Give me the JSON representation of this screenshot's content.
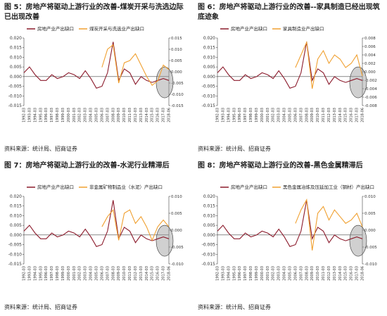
{
  "chart_data": [
    {
      "type": "line",
      "title": "图 5：房地产将驱动上游行业的改善-煤炭开采与洗选边际已出现改善",
      "source": "资料来源：统计局、招商证券",
      "categories": [
        "1992-03",
        "1993-03",
        "1994-03",
        "1995-03",
        "1996-03",
        "1997-03",
        "1998-03",
        "1999-03",
        "2000-03",
        "2001-03",
        "2002-03",
        "2003-03",
        "2004-03",
        "2005-03",
        "2006-03",
        "2007-03",
        "2008-03",
        "2009-03",
        "2010-03",
        "2011-03",
        "2012-03",
        "2013-03",
        "2014-03",
        "2015-03",
        "2016-03",
        "2017-03",
        "2018-06"
      ],
      "ylim": [
        -0.015,
        0.02
      ],
      "yticks": [
        -0.015,
        {
          "value": -0.01,
          "label": "-0.010"
        },
        -0.005,
        {
          "value": 0,
          "label": "0.000"
        },
        0.005,
        {
          "value": 0.01,
          "label": "0.010"
        },
        0.015,
        {
          "value": 0.02,
          "label": "0.020"
        }
      ],
      "y2lim": [
        -0.015,
        0.015
      ],
      "y2ticks": [
        -0.015,
        {
          "value": -0.01,
          "label": "-0.010"
        },
        -0.005,
        {
          "value": 0,
          "label": "0.000"
        },
        0.005,
        {
          "value": 0.01,
          "label": "0.010"
        },
        0.015
      ],
      "series": [
        {
          "name": "房地产业产出缺口",
          "color": "#8b1a2b",
          "values": [
            0.002,
            0.005,
            0.001,
            -0.002,
            -0.002,
            0.001,
            -0.001,
            0,
            0.002,
            0.001,
            -0.001,
            0.003,
            -0.001,
            -0.006,
            -0.005,
            0.002,
            0.018,
            -0.002,
            0.004,
            0.002,
            -0.004,
            0,
            -0.002,
            -0.003,
            -0.002,
            -0.001,
            -0.002
          ]
        },
        {
          "name": "煤炭开采与洗选业产出缺口",
          "color": "#f0a030",
          "axis": "y2",
          "values": [
            null,
            null,
            null,
            null,
            null,
            null,
            null,
            null,
            null,
            null,
            null,
            null,
            null,
            null,
            0.002,
            0.01,
            0.012,
            -0.005,
            0.004,
            0.005,
            0.008,
            0.003,
            -0.002,
            -0.006,
            -0.004,
            0.003,
            0.001
          ]
        }
      ]
    },
    {
      "type": "line",
      "title": "图 6：房地产将驱动上游行业的改善--家具制造已经出现筑底迹象",
      "source": "资料来源：统计局、招商证券",
      "categories": [
        "1992-03",
        "1993-03",
        "1994-03",
        "1995-03",
        "1996-03",
        "1997-03",
        "1998-03",
        "1999-03",
        "2000-03",
        "2001-03",
        "2002-03",
        "2003-03",
        "2004-03",
        "2005-03",
        "2006-03",
        "2007-03",
        "2008-03",
        "2009-03",
        "2010-03",
        "2011-03",
        "2012-03",
        "2013-03",
        "2014-03",
        "2015-03",
        "2016-03",
        "2017-03",
        "2018-06"
      ],
      "ylim": [
        -0.015,
        0.02
      ],
      "yticks": [
        -0.015,
        {
          "value": -0.01,
          "label": "-0.010"
        },
        -0.005,
        {
          "value": 0,
          "label": "0.000"
        },
        0.005,
        {
          "value": 0.01,
          "label": "0.010"
        },
        0.015,
        {
          "value": 0.02,
          "label": "0.020"
        }
      ],
      "y2lim": [
        -0.008,
        0.008
      ],
      "y2ticks": [
        -0.008,
        -0.006,
        -0.004,
        -0.002,
        {
          "value": 0,
          "label": "0.000"
        },
        0.002,
        0.004,
        0.006,
        0.008
      ],
      "series": [
        {
          "name": "房地产业产出缺口",
          "color": "#8b1a2b",
          "values": [
            0.002,
            0.005,
            0.001,
            -0.002,
            -0.002,
            0.001,
            -0.001,
            0,
            0.002,
            0.001,
            -0.001,
            0.003,
            -0.001,
            -0.006,
            -0.005,
            0.002,
            0.018,
            -0.002,
            0.004,
            0.002,
            -0.004,
            0,
            -0.002,
            -0.003,
            -0.002,
            -0.001,
            -0.002
          ]
        },
        {
          "name": "家具制造业产出缺口",
          "color": "#f0a030",
          "axis": "y2",
          "values": [
            null,
            null,
            null,
            null,
            null,
            null,
            null,
            null,
            null,
            null,
            null,
            null,
            null,
            null,
            0.001,
            0.004,
            0.007,
            -0.004,
            0.003,
            0.005,
            0.002,
            0.004,
            0.003,
            0.001,
            0.002,
            0.004,
            -0.001
          ]
        }
      ]
    },
    {
      "type": "line",
      "title": "图 7：房地产将驱动上游行业的改善-水泥行业精滞后",
      "source": "资料来源：统计局、招商证券",
      "categories": [
        "1992-03",
        "1993-03",
        "1994-03",
        "1995-03",
        "1996-03",
        "1997-03",
        "1998-03",
        "1999-03",
        "2000-03",
        "2001-03",
        "2002-03",
        "2003-03",
        "2004-03",
        "2005-03",
        "2006-03",
        "2007-03",
        "2008-03",
        "2009-03",
        "2010-03",
        "2011-03",
        "2012-03",
        "2013-03",
        "2014-03",
        "2015-03",
        "2016-03",
        "2017-03",
        "2018-06"
      ],
      "ylim": [
        -0.015,
        0.02
      ],
      "yticks": [
        -0.015,
        {
          "value": -0.01,
          "label": "-0.010"
        },
        -0.005,
        {
          "value": 0,
          "label": "0.000"
        },
        0.005,
        {
          "value": 0.01,
          "label": "0.010"
        },
        0.015,
        {
          "value": 0.02,
          "label": "0.020"
        }
      ],
      "y2lim": [
        -0.01,
        0.01
      ],
      "y2ticks": [
        {
          "value": -0.01,
          "label": "-0.010"
        },
        -0.005,
        {
          "value": 0,
          "label": "0.000"
        },
        0.005,
        {
          "value": 0.01,
          "label": "0.010"
        }
      ],
      "series": [
        {
          "name": "房地产业产出缺口",
          "color": "#8b1a2b",
          "values": [
            0.002,
            0.005,
            0.001,
            -0.002,
            -0.002,
            0.001,
            -0.001,
            0,
            0.002,
            0.001,
            -0.001,
            0.003,
            -0.001,
            -0.006,
            -0.005,
            0.002,
            0.018,
            -0.002,
            0.004,
            0.002,
            -0.004,
            0,
            -0.002,
            -0.003,
            -0.002,
            -0.001,
            -0.002
          ]
        },
        {
          "name": "非金属矿物制品业（水泥）产出缺口",
          "color": "#f0a030",
          "axis": "y2",
          "values": [
            null,
            null,
            null,
            null,
            null,
            null,
            null,
            null,
            null,
            null,
            null,
            null,
            null,
            null,
            0.001,
            0.004,
            0.006,
            -0.003,
            0.005,
            0.006,
            0.002,
            0.004,
            0.001,
            -0.003,
            0.001,
            0.003,
            0.001
          ]
        }
      ]
    },
    {
      "type": "line",
      "title": "图 8：房地产将驱动上游行业的改善-黑色金属精滞后",
      "source": "资料来源：统计局、招商证券",
      "categories": [
        "1992-03",
        "1993-03",
        "1994-03",
        "1995-03",
        "1996-03",
        "1997-03",
        "1998-03",
        "1999-03",
        "2000-03",
        "2001-03",
        "2002-03",
        "2003-03",
        "2004-03",
        "2005-03",
        "2006-03",
        "2007-03",
        "2008-03",
        "2009-03",
        "2010-03",
        "2011-03",
        "2012-03",
        "2013-03",
        "2014-03",
        "2015-03",
        "2016-03",
        "2017-03",
        "2018-06"
      ],
      "ylim": [
        -0.015,
        0.02
      ],
      "yticks": [
        -0.015,
        {
          "value": -0.01,
          "label": "-0.010"
        },
        -0.005,
        {
          "value": 0,
          "label": "0.000"
        },
        0.005,
        {
          "value": 0.01,
          "label": "0.010"
        },
        0.015,
        {
          "value": 0.02,
          "label": "0.020"
        }
      ],
      "y2lim": [
        -0.01,
        0.01
      ],
      "y2ticks": [
        {
          "value": -0.01,
          "label": "-0.010"
        },
        -0.005,
        {
          "value": 0,
          "label": "0.000"
        },
        0.005,
        {
          "value": 0.01,
          "label": "0.010"
        }
      ],
      "series": [
        {
          "name": "房地产业产出缺口",
          "color": "#8b1a2b",
          "values": [
            0.002,
            0.005,
            0.001,
            -0.002,
            -0.002,
            0.001,
            -0.001,
            0,
            0.002,
            0.001,
            -0.001,
            0.003,
            -0.001,
            -0.006,
            -0.005,
            0.002,
            0.018,
            -0.002,
            0.004,
            0.002,
            -0.004,
            0,
            -0.002,
            -0.003,
            -0.002,
            -0.001,
            -0.002
          ]
        },
        {
          "name": "黑色金属冶炼及压延加工业（钢材）产出缺口",
          "color": "#f0a030",
          "axis": "y2",
          "values": [
            null,
            null,
            null,
            null,
            null,
            null,
            null,
            null,
            null,
            null,
            null,
            null,
            null,
            null,
            0.002,
            0.006,
            0.009,
            -0.006,
            0.005,
            0.007,
            0.003,
            0.006,
            0.004,
            0.002,
            0.003,
            0.005,
            0.001
          ]
        }
      ]
    }
  ]
}
